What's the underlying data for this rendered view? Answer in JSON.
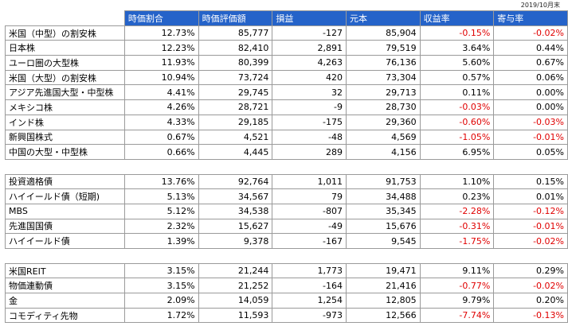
{
  "date_note": "2019/10月末",
  "headers": [
    "",
    "時価割合",
    "時価評価額",
    "損益",
    "元本",
    "収益率",
    "寄与率"
  ],
  "groups": [
    [
      [
        "米国（中型）の割安株",
        "12.73%",
        "85,777",
        "-127",
        "85,904",
        "-0.15%",
        "-0.02%"
      ],
      [
        "日本株",
        "12.23%",
        "82,410",
        "2,891",
        "79,519",
        "3.64%",
        "0.44%"
      ],
      [
        "ユーロ圏の大型株",
        "11.93%",
        "80,399",
        "4,263",
        "76,136",
        "5.60%",
        "0.67%"
      ],
      [
        "米国（大型）の割安株",
        "10.94%",
        "73,724",
        "420",
        "73,304",
        "0.57%",
        "0.06%"
      ],
      [
        "アジア先進国大型・中型株",
        "4.41%",
        "29,745",
        "32",
        "29,713",
        "0.11%",
        "0.00%"
      ],
      [
        "メキシコ株",
        "4.26%",
        "28,721",
        "-9",
        "28,730",
        "-0.03%",
        "0.00%"
      ],
      [
        "インド株",
        "4.33%",
        "29,185",
        "-175",
        "29,360",
        "-0.60%",
        "-0.03%"
      ],
      [
        "新興国株式",
        "0.67%",
        "4,521",
        "-48",
        "4,569",
        "-1.05%",
        "-0.01%"
      ],
      [
        "中国の大型・中型株",
        "0.66%",
        "4,445",
        "289",
        "4,156",
        "6.95%",
        "0.05%"
      ]
    ],
    [
      [
        "投資適格債",
        "13.76%",
        "92,764",
        "1,011",
        "91,753",
        "1.10%",
        "0.15%"
      ],
      [
        "ハイイールド債（短期)",
        "5.13%",
        "34,567",
        "79",
        "34,488",
        "0.23%",
        "0.01%"
      ],
      [
        "MBS",
        "5.12%",
        "34,538",
        "-807",
        "35,345",
        "-2.28%",
        "-0.12%"
      ],
      [
        "先進国国債",
        "2.32%",
        "15,627",
        "-49",
        "15,676",
        "-0.31%",
        "-0.01%"
      ],
      [
        "ハイイールド債",
        "1.39%",
        "9,378",
        "-167",
        "9,545",
        "-1.75%",
        "-0.02%"
      ]
    ],
    [
      [
        "米国REIT",
        "3.15%",
        "21,244",
        "1,773",
        "19,471",
        "9.11%",
        "0.29%"
      ],
      [
        "物価連動債",
        "3.15%",
        "21,252",
        "-164",
        "21,416",
        "-0.77%",
        "-0.02%"
      ],
      [
        "金",
        "2.09%",
        "14,059",
        "1,254",
        "12,805",
        "9.79%",
        "0.20%"
      ],
      [
        "コモディティ先物",
        "1.72%",
        "11,593",
        "-973",
        "12,566",
        "-7.74%",
        "-0.13%"
      ]
    ]
  ],
  "colors": {
    "header_bg": "#2563c9",
    "header_text": "#ffffff",
    "negative": "#e00000",
    "border": "#9a9a9a"
  }
}
